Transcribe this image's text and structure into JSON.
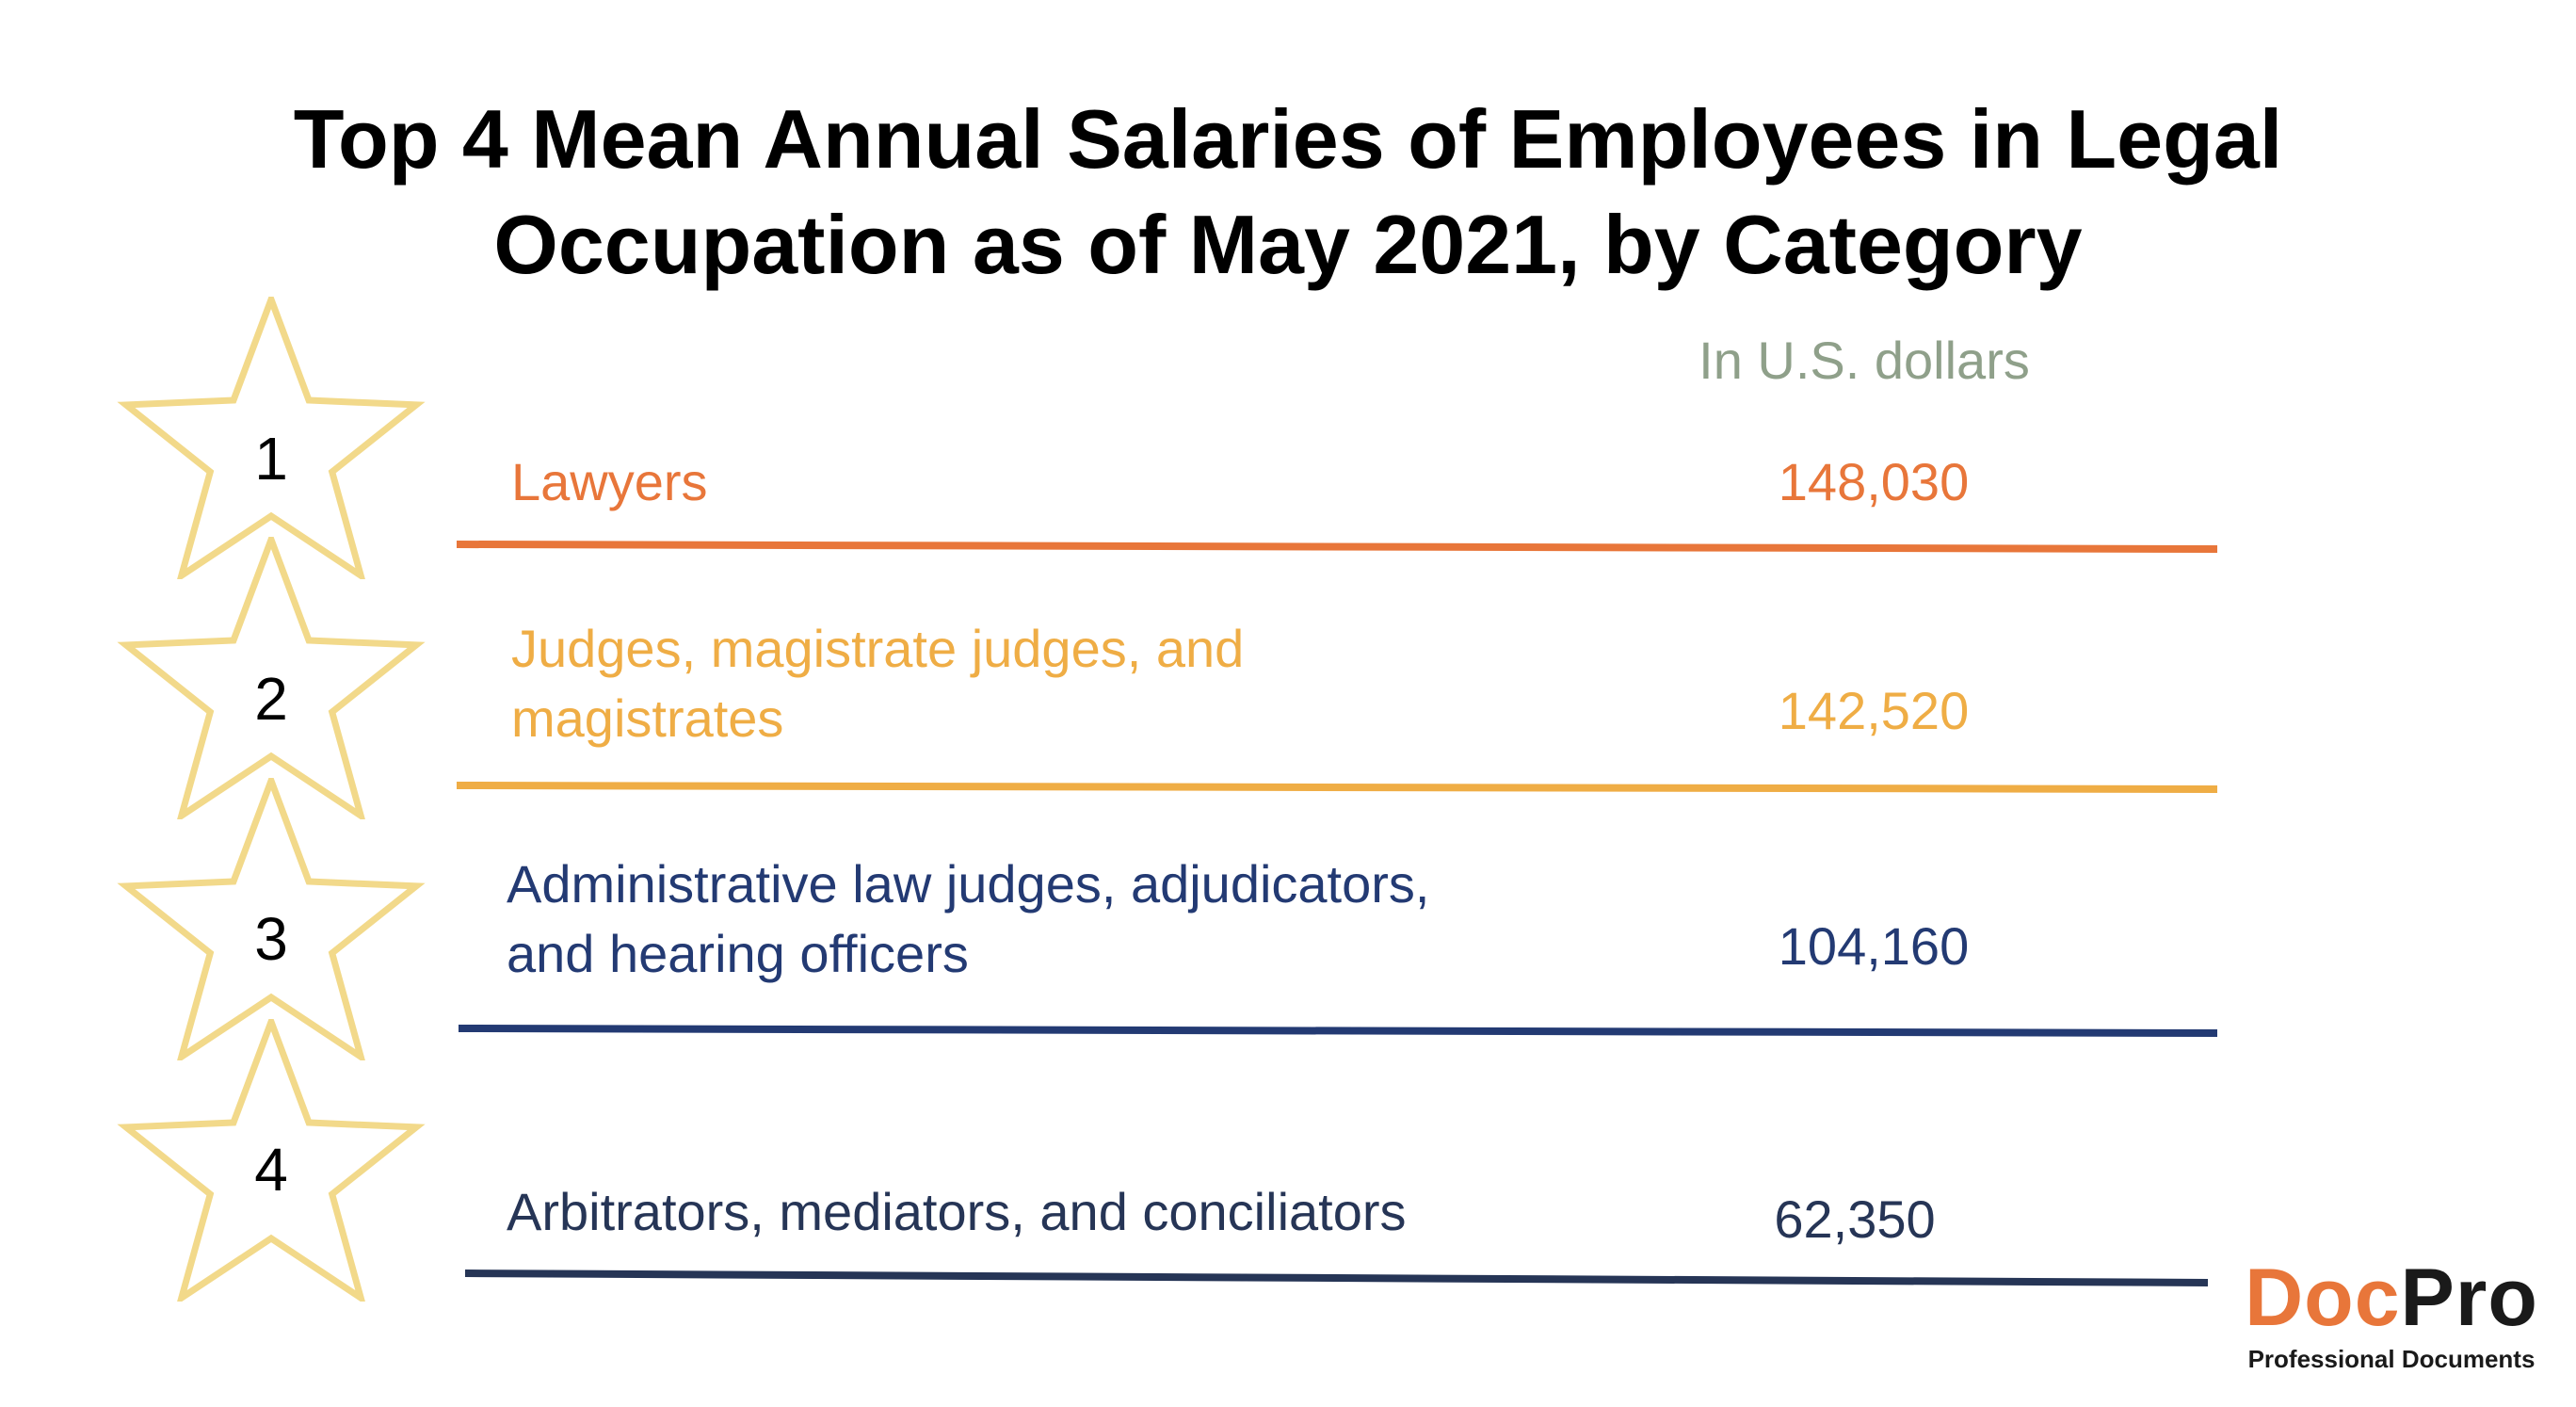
{
  "chart_data": {
    "type": "table",
    "title_lines": [
      "Top 4 Mean Annual Salaries of Employees in Legal",
      "Occupation as of May 2021, by Category"
    ],
    "unit_label": "In U.S. dollars",
    "rows": [
      {
        "rank": "1",
        "label_lines": [
          "Lawyers"
        ],
        "value": 148030,
        "value_label": "148,030",
        "color": "#E8763A"
      },
      {
        "rank": "2",
        "label_lines": [
          "Judges, magistrate judges, and",
          "magistrates"
        ],
        "value": 142520,
        "value_label": "142,520",
        "color": "#EFAD45"
      },
      {
        "rank": "3",
        "label_lines": [
          "Administrative law judges, adjudicators,",
          "and hearing officers"
        ],
        "value": 104160,
        "value_label": "104,160",
        "color": "#233A73"
      },
      {
        "rank": "4",
        "label_lines": [
          "Arbitrators, mediators, and conciliators"
        ],
        "value": 62350,
        "value_label": "62,350",
        "color": "#263556"
      }
    ]
  },
  "colors": {
    "unit": "#8FA08A",
    "star_stroke": "#F2D98A",
    "logo_doc": "#E8763A",
    "logo_pro": "#1A1A1A"
  },
  "logo": {
    "doc": "Doc",
    "pro": "Pro",
    "tagline": "Professional Documents"
  }
}
